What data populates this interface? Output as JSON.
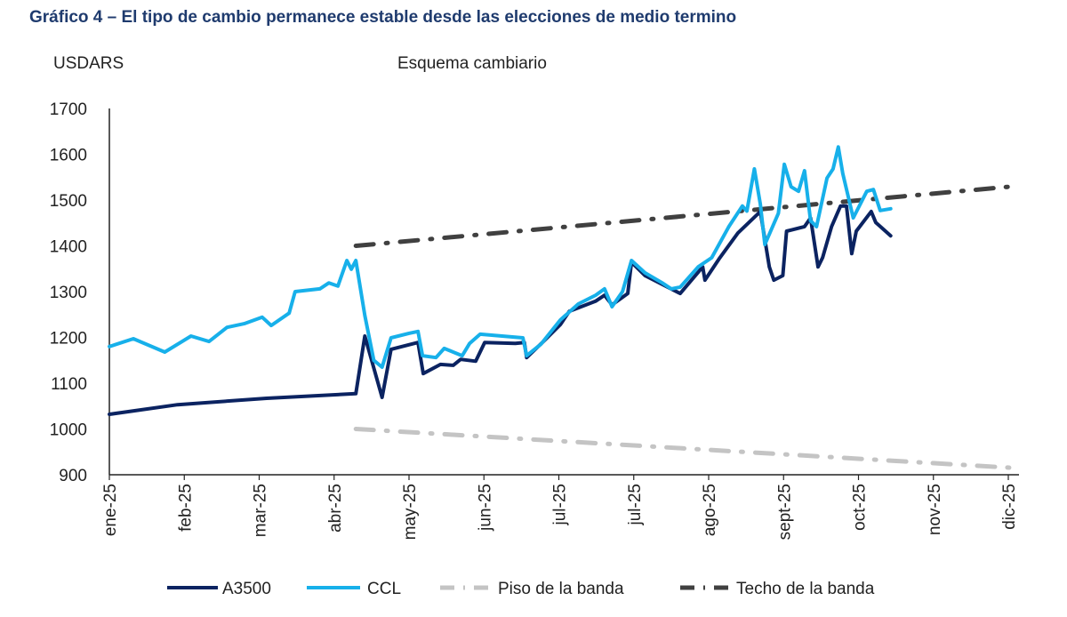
{
  "title": "Gráfico 4 – El tipo de cambio permanece estable desde las elecciones de medio termino",
  "colors": {
    "title": "#1f3b6e",
    "A3500": "#0b2361",
    "CCL": "#17b0ea",
    "piso": "#c4c4c4",
    "techo": "#404040"
  },
  "chart_data": {
    "type": "line",
    "title": "Esquema cambiario",
    "ylabel": "USDARS",
    "xlabel": "",
    "ylim": [
      900,
      1700
    ],
    "yticks": [
      "900",
      "1000",
      "1100",
      "1200",
      "1300",
      "1400",
      "1500",
      "1600",
      "1700"
    ],
    "x_unit": "months since ene-25",
    "xticks": [
      "ene-25",
      "feb-25",
      "mar-25",
      "abr-25",
      "may-25",
      "jun-25",
      "jul-25",
      "jul-25",
      "ago-25",
      "sept-25",
      "oct-25",
      "nov-25",
      "dic-25"
    ],
    "grid": false,
    "legend_position": "bottom",
    "series": [
      {
        "name": "A3500",
        "style": "solid",
        "points": [
          [
            0,
            1032
          ],
          [
            0.91,
            1053
          ],
          [
            2.1,
            1067
          ],
          [
            3.29,
            1077
          ],
          [
            3.41,
            1203
          ],
          [
            3.64,
            1069
          ],
          [
            3.76,
            1174
          ],
          [
            4.12,
            1189
          ],
          [
            4.19,
            1121
          ],
          [
            4.42,
            1141
          ],
          [
            4.59,
            1139
          ],
          [
            4.69,
            1152
          ],
          [
            4.89,
            1148
          ],
          [
            5.01,
            1189
          ],
          [
            5.42,
            1187
          ],
          [
            5.54,
            1189
          ],
          [
            5.57,
            1156
          ],
          [
            5.78,
            1189
          ],
          [
            6.02,
            1228
          ],
          [
            6.14,
            1257
          ],
          [
            6.49,
            1279
          ],
          [
            6.61,
            1292
          ],
          [
            6.71,
            1271
          ],
          [
            6.92,
            1296
          ],
          [
            6.97,
            1364
          ],
          [
            7.15,
            1335
          ],
          [
            7.38,
            1316
          ],
          [
            7.62,
            1296
          ],
          [
            7.92,
            1354
          ],
          [
            7.95,
            1325
          ],
          [
            8.15,
            1374
          ],
          [
            8.39,
            1428
          ],
          [
            8.69,
            1475
          ],
          [
            8.81,
            1354
          ],
          [
            8.87,
            1325
          ],
          [
            8.99,
            1335
          ],
          [
            9.04,
            1432
          ],
          [
            9.28,
            1442
          ],
          [
            9.36,
            1461
          ],
          [
            9.46,
            1354
          ],
          [
            9.52,
            1374
          ],
          [
            9.64,
            1442
          ],
          [
            9.76,
            1487
          ],
          [
            9.84,
            1487
          ],
          [
            9.91,
            1383
          ],
          [
            9.97,
            1432
          ],
          [
            10.17,
            1475
          ],
          [
            10.23,
            1451
          ],
          [
            10.43,
            1422
          ]
        ]
      },
      {
        "name": "CCL",
        "style": "solid",
        "points": [
          [
            0,
            1180
          ],
          [
            0.32,
            1197
          ],
          [
            0.74,
            1168
          ],
          [
            1.09,
            1203
          ],
          [
            1.33,
            1191
          ],
          [
            1.57,
            1222
          ],
          [
            1.8,
            1230
          ],
          [
            2.04,
            1244
          ],
          [
            2.16,
            1226
          ],
          [
            2.4,
            1253
          ],
          [
            2.48,
            1300
          ],
          [
            2.81,
            1306
          ],
          [
            2.93,
            1319
          ],
          [
            3.05,
            1312
          ],
          [
            3.17,
            1368
          ],
          [
            3.23,
            1349
          ],
          [
            3.29,
            1368
          ],
          [
            3.41,
            1248
          ],
          [
            3.53,
            1150
          ],
          [
            3.64,
            1135
          ],
          [
            3.76,
            1199
          ],
          [
            4.0,
            1209
          ],
          [
            4.12,
            1213
          ],
          [
            4.18,
            1160
          ],
          [
            4.36,
            1156
          ],
          [
            4.47,
            1176
          ],
          [
            4.71,
            1160
          ],
          [
            4.81,
            1187
          ],
          [
            4.95,
            1207
          ],
          [
            5.52,
            1199
          ],
          [
            5.57,
            1160
          ],
          [
            5.76,
            1185
          ],
          [
            6.02,
            1238
          ],
          [
            6.26,
            1273
          ],
          [
            6.49,
            1292
          ],
          [
            6.61,
            1306
          ],
          [
            6.71,
            1267
          ],
          [
            6.85,
            1300
          ],
          [
            6.97,
            1368
          ],
          [
            7.15,
            1341
          ],
          [
            7.38,
            1319
          ],
          [
            7.5,
            1306
          ],
          [
            7.62,
            1310
          ],
          [
            7.86,
            1354
          ],
          [
            8.04,
            1374
          ],
          [
            8.27,
            1442
          ],
          [
            8.45,
            1487
          ],
          [
            8.51,
            1476
          ],
          [
            8.61,
            1568
          ],
          [
            8.69,
            1491
          ],
          [
            8.75,
            1403
          ],
          [
            8.93,
            1471
          ],
          [
            9.01,
            1578
          ],
          [
            9.1,
            1529
          ],
          [
            9.2,
            1519
          ],
          [
            9.28,
            1564
          ],
          [
            9.36,
            1455
          ],
          [
            9.44,
            1442
          ],
          [
            9.58,
            1548
          ],
          [
            9.66,
            1568
          ],
          [
            9.73,
            1616
          ],
          [
            9.79,
            1558
          ],
          [
            9.93,
            1461
          ],
          [
            10.11,
            1519
          ],
          [
            10.2,
            1523
          ],
          [
            10.29,
            1477
          ],
          [
            10.43,
            1481
          ]
        ]
      },
      {
        "name": "Piso de la banda",
        "style": "dash-dot",
        "points": [
          [
            3.29,
            1000
          ],
          [
            12.07,
            915
          ]
        ]
      },
      {
        "name": "Techo de la banda",
        "style": "dash-dot",
        "points": [
          [
            3.29,
            1400
          ],
          [
            12.07,
            1530
          ]
        ]
      }
    ]
  }
}
